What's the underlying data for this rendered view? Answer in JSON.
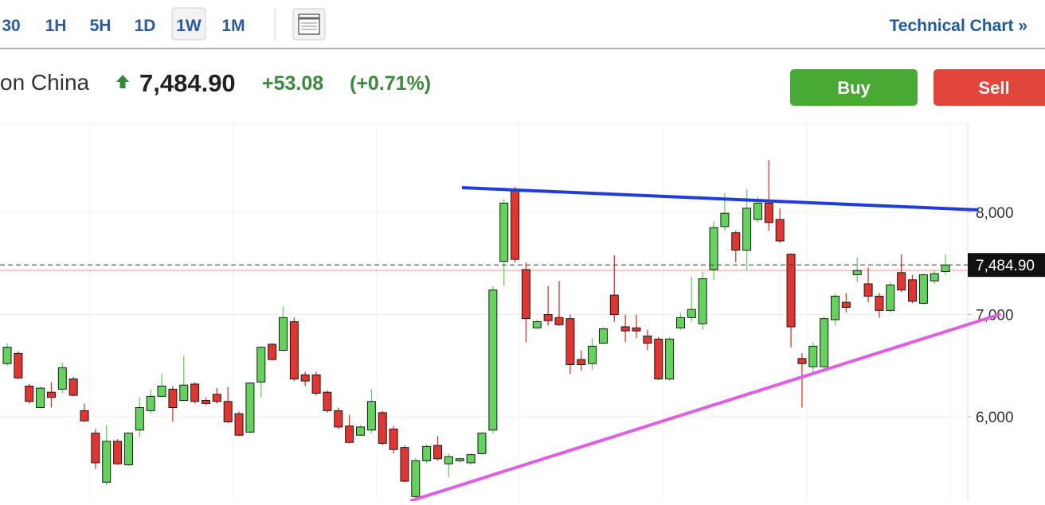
{
  "toolbar": {
    "intervals": [
      "30",
      "1H",
      "5H",
      "1D",
      "1W",
      "1M"
    ],
    "link": "Technical Chart »"
  },
  "quote": {
    "name": "on China",
    "price": "7,484.90",
    "change": "+53.08",
    "change_pct": "(+0.71%)"
  },
  "buttons": {
    "buy": "Buy",
    "sell": "Sell"
  },
  "chart_data": {
    "type": "candlestick",
    "open": [
      6520,
      6620,
      6300,
      6090,
      6240,
      6270,
      6370,
      6060,
      5840,
      5360,
      5760,
      5530,
      5870,
      6060,
      6200,
      6270,
      6160,
      6320,
      6160,
      6220,
      6150,
      6030,
      5850,
      6340,
      6710,
      6650,
      6930,
      6410,
      6410,
      6240,
      6060,
      5910,
      5820,
      5870,
      6040,
      5880,
      5700,
      5220,
      5570,
      5720,
      5540,
      5570,
      5550,
      5640,
      5870,
      7520,
      8210,
      7440,
      6870,
      7000,
      6970,
      6960,
      6560,
      6520,
      6720,
      7190,
      6880,
      6870,
      6790,
      6760,
      6370,
      6870,
      6970,
      6910,
      7440,
      7860,
      7800,
      7630,
      7930,
      8090,
      7930,
      7590,
      6570,
      6490,
      6490,
      6950,
      7120,
      7390,
      7300,
      7180,
      7040,
      7410,
      7340,
      7110,
      7330,
      7420
    ],
    "high": [
      6720,
      6640,
      6320,
      6300,
      6340,
      6530,
      6390,
      6130,
      5880,
      5920,
      5780,
      5850,
      6190,
      6270,
      6420,
      6300,
      6600,
      6340,
      6190,
      6280,
      6290,
      6050,
      6340,
      6690,
      6720,
      7080,
      6970,
      6440,
      6440,
      6260,
      6090,
      6020,
      5920,
      6270,
      6060,
      5910,
      5720,
      5600,
      5730,
      5810,
      5640,
      5600,
      5640,
      5850,
      7280,
      8130,
      8250,
      7510,
      6950,
      7280,
      7330,
      7000,
      6650,
      6770,
      6880,
      7580,
      7000,
      7000,
      6850,
      6780,
      6780,
      7020,
      7370,
      7420,
      7910,
      8190,
      7820,
      8230,
      8150,
      8510,
      8040,
      7600,
      6620,
      6730,
      6980,
      7210,
      7210,
      7560,
      7460,
      7210,
      7320,
      7590,
      7390,
      7400,
      7430,
      7590
    ],
    "low": [
      6500,
      6370,
      6130,
      6080,
      6090,
      6230,
      6200,
      5950,
      5490,
      5330,
      5530,
      5520,
      5800,
      6030,
      6190,
      5950,
      6150,
      6130,
      6110,
      6130,
      5940,
      5810,
      5840,
      6190,
      6550,
      6640,
      6350,
      6300,
      6210,
      6040,
      5880,
      5740,
      5810,
      5840,
      5720,
      5640,
      5360,
      5190,
      5550,
      5570,
      5410,
      5550,
      5530,
      5630,
      5840,
      7280,
      7510,
      6730,
      6860,
      6890,
      6890,
      6420,
      6450,
      6460,
      6710,
      6930,
      6730,
      6770,
      6650,
      6360,
      6350,
      6850,
      6930,
      6850,
      7340,
      7820,
      7510,
      7430,
      7900,
      7820,
      7700,
      6680,
      6090,
      6420,
      6460,
      6890,
      7020,
      7320,
      7120,
      6970,
      7020,
      7220,
      7110,
      7100,
      7300,
      7390
    ],
    "close": [
      6680,
      6380,
      6150,
      6280,
      6190,
      6480,
      6210,
      5960,
      5550,
      5760,
      5540,
      5840,
      6090,
      6200,
      6300,
      6090,
      6310,
      6150,
      6130,
      6150,
      5950,
      5820,
      6330,
      6680,
      6560,
      6970,
      6370,
      6350,
      6230,
      6060,
      5900,
      5750,
      5900,
      6150,
      5740,
      5680,
      5370,
      5570,
      5710,
      5590,
      5610,
      5590,
      5630,
      5840,
      7240,
      8090,
      7540,
      6960,
      6930,
      6940,
      6900,
      6510,
      6510,
      6690,
      6860,
      7000,
      6840,
      6840,
      6720,
      6370,
      6760,
      6970,
      7050,
      7350,
      7850,
      7990,
      7630,
      8040,
      8090,
      7900,
      7720,
      6880,
      6520,
      6690,
      6960,
      7180,
      7070,
      7430,
      7180,
      7040,
      7290,
      7240,
      7130,
      7390,
      7400,
      7484.9
    ],
    "up_color": "#62d35b",
    "down_color": "#e2352f",
    "last_price": {
      "value": 7484.9,
      "label": "7,484.90"
    },
    "previous_close": 7431.82,
    "trendlines": [
      {
        "color": "#1f3ddf",
        "x": [
          41.2,
          88
        ],
        "y": [
          8241,
          8023
        ]
      },
      {
        "color": "#e05ee3",
        "x": [
          36.5,
          90
        ],
        "y": [
          5176,
          7004
        ]
      }
    ],
    "ylim": [
      5176,
      8871
    ],
    "yticks": [
      {
        "value": 6000,
        "label": "6,000"
      },
      {
        "value": 7000,
        "label": "7,000"
      },
      {
        "value": 8000,
        "label": "8,000"
      }
    ],
    "grid": true
  }
}
